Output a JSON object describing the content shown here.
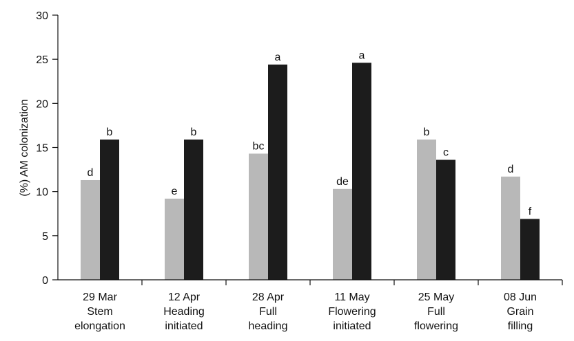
{
  "chart_data": {
    "type": "bar",
    "title": "",
    "xlabel": "",
    "ylabel": "(%) AM colonization",
    "ylim": [
      0,
      30
    ],
    "yticks": [
      0,
      5,
      10,
      15,
      20,
      25,
      30
    ],
    "grid": false,
    "legend": "none",
    "categories": [
      [
        "29 Mar",
        "Stem",
        "elongation"
      ],
      [
        "12 Apr",
        "Heading",
        "initiated"
      ],
      [
        "28 Apr",
        "Full",
        "heading"
      ],
      [
        "11 May",
        "Flowering",
        "initiated"
      ],
      [
        "25 May",
        "Full",
        "flowering"
      ],
      [
        "08 Jun",
        "Grain",
        "filling"
      ]
    ],
    "series": [
      {
        "color": "#b8b8b8",
        "values": [
          11.3,
          9.2,
          14.3,
          10.3,
          15.9,
          11.7
        ],
        "labels": [
          "d",
          "e",
          "bc",
          "de",
          "b",
          "d"
        ]
      },
      {
        "color": "#1c1c1c",
        "values": [
          15.9,
          15.9,
          24.4,
          24.6,
          13.6,
          6.9
        ],
        "labels": [
          "b",
          "b",
          "a",
          "a",
          "c",
          "f"
        ]
      }
    ]
  }
}
